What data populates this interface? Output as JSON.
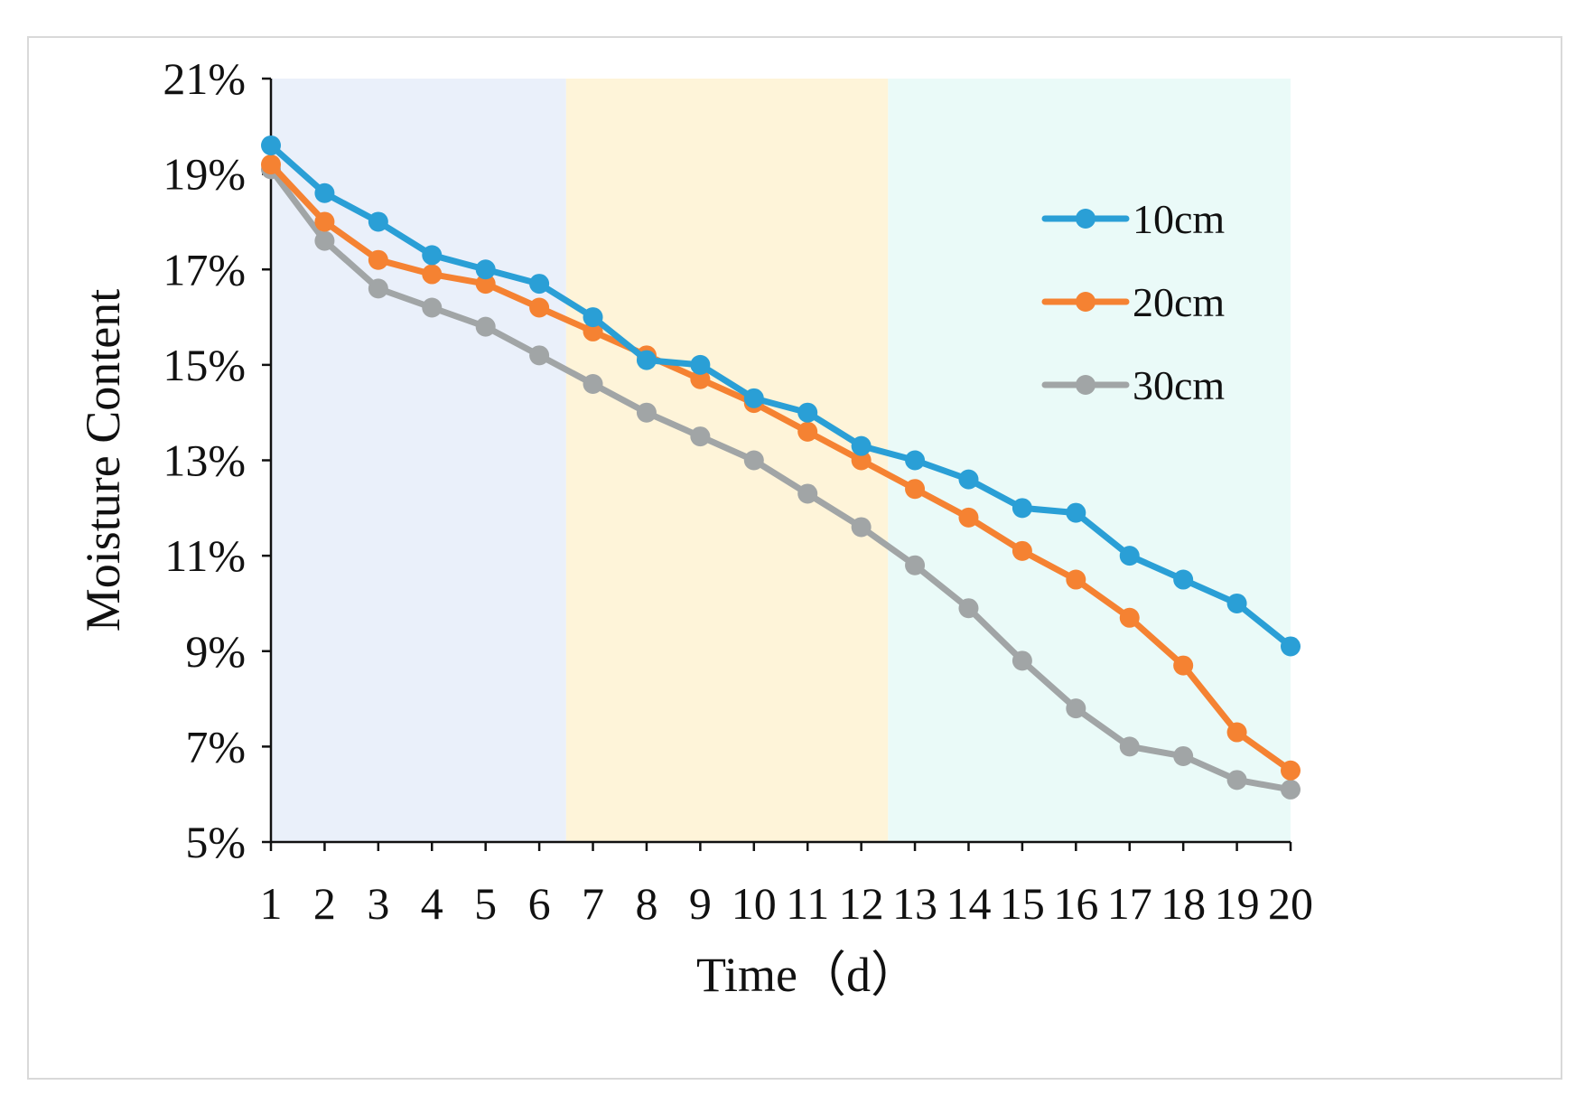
{
  "chart_data": {
    "type": "line",
    "title": "",
    "xlabel": "Time（d）",
    "ylabel": "Moisture Content",
    "categories": [
      "1",
      "2",
      "3",
      "4",
      "5",
      "6",
      "7",
      "8",
      "9",
      "10",
      "11",
      "12",
      "13",
      "14",
      "15",
      "16",
      "17",
      "18",
      "19",
      "20"
    ],
    "ylim": [
      5,
      21
    ],
    "yticks": [
      5,
      7,
      9,
      11,
      13,
      15,
      17,
      19,
      21
    ],
    "ytick_labels": [
      "5%",
      "7%",
      "9%",
      "11%",
      "13%",
      "15%",
      "17%",
      "19%",
      "21%"
    ],
    "grid": false,
    "legend_position": "top-right",
    "shaded_regions": [
      {
        "name": "phase-1",
        "from": 0.5,
        "to": 6.5,
        "color": "#eaf0fa"
      },
      {
        "name": "phase-2",
        "from": 6.5,
        "to": 12.5,
        "color": "#fef4d9"
      },
      {
        "name": "phase-3",
        "from": 12.5,
        "to": 20.0,
        "color": "#eafaf8"
      }
    ],
    "series": [
      {
        "name": "10cm",
        "color": "#2a9fd6",
        "values": [
          19.6,
          18.6,
          18.0,
          17.3,
          17.0,
          16.7,
          16.0,
          15.1,
          15.0,
          14.3,
          14.0,
          13.3,
          13.0,
          12.6,
          12.0,
          11.9,
          11.0,
          10.5,
          10.0,
          9.1
        ]
      },
      {
        "name": "20cm",
        "color": "#f58232",
        "values": [
          19.2,
          18.0,
          17.2,
          16.9,
          16.7,
          16.2,
          15.7,
          15.2,
          14.7,
          14.2,
          13.6,
          13.0,
          12.4,
          11.8,
          11.1,
          10.5,
          9.7,
          8.7,
          7.3,
          6.5
        ]
      },
      {
        "name": "30cm",
        "color": "#a1a5a6",
        "values": [
          19.1,
          17.6,
          16.6,
          16.2,
          15.8,
          15.2,
          14.6,
          14.0,
          13.5,
          13.0,
          12.3,
          11.6,
          10.8,
          9.9,
          8.8,
          7.8,
          7.0,
          6.8,
          6.3,
          6.1
        ]
      }
    ]
  }
}
